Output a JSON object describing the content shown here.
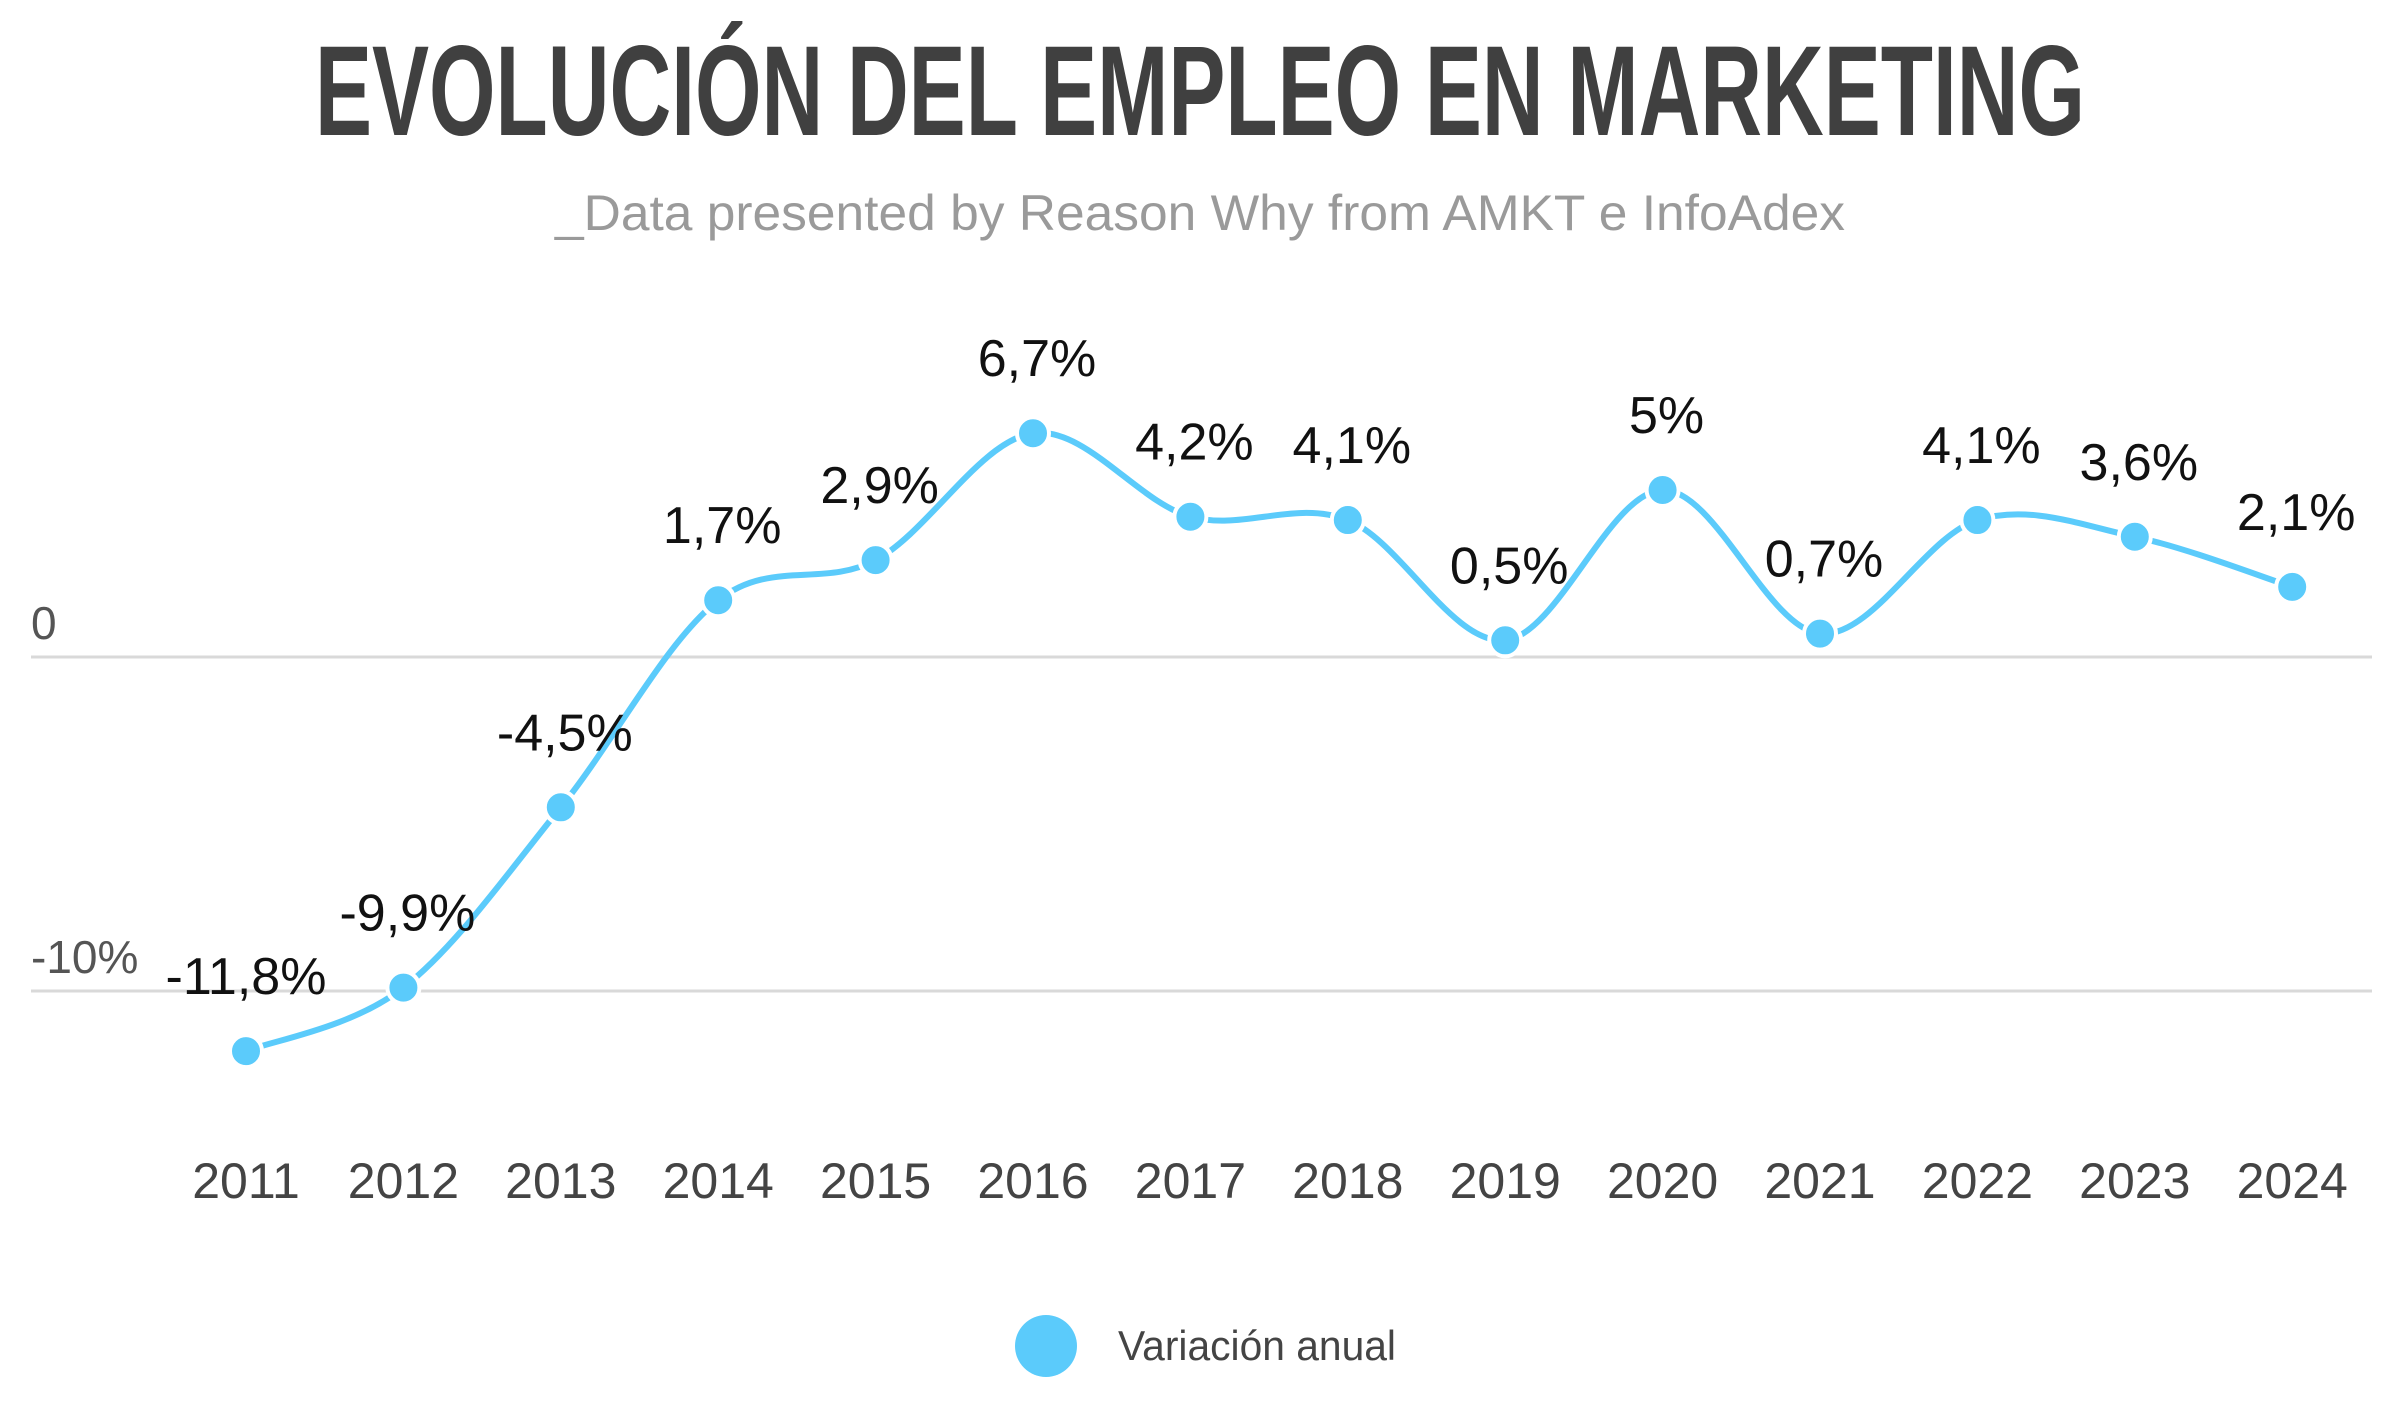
{
  "chart_data": {
    "type": "line",
    "title": "EVOLUCIÓN DEL EMPLEO EN MARKETING",
    "subtitle": "_Data presented by Reason Why from AMKT e InfoAdex",
    "categories": [
      "2011",
      "2012",
      "2013",
      "2014",
      "2015",
      "2016",
      "2017",
      "2018",
      "2019",
      "2020",
      "2021",
      "2022",
      "2023",
      "2024"
    ],
    "series": [
      {
        "name": "Variación anual",
        "values": [
          -11.8,
          -9.9,
          -4.5,
          1.7,
          2.9,
          6.7,
          4.2,
          4.1,
          0.5,
          5,
          0.7,
          4.1,
          3.6,
          2.1
        ],
        "labels": [
          "-11,8%",
          "-9,9%",
          "-4,5%",
          "1,7%",
          "2,9%",
          "6,7%",
          "4,2%",
          "4,1%",
          "0,5%",
          "5%",
          "0,7%",
          "4,1%",
          "3,6%",
          "2,1%"
        ]
      }
    ],
    "yticks": [
      {
        "value": 0,
        "label": "0"
      },
      {
        "value": -10,
        "label": "-10%"
      }
    ],
    "grid": true,
    "smooth": true,
    "legend_position": "bottom",
    "colors": {
      "series": "#5bcbfb",
      "grid": "#d9d9d9",
      "title": "#404040"
    }
  }
}
